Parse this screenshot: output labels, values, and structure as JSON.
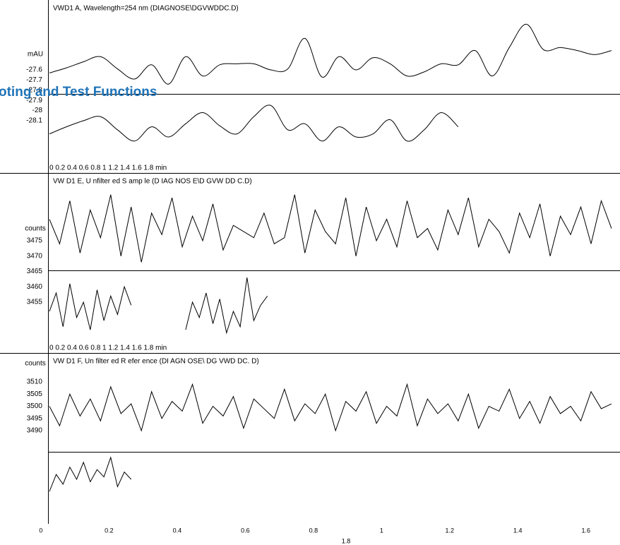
{
  "overlay_text": "oting and Test Functions",
  "stray_label": "1.8",
  "x_axis": {
    "xlim": [
      -0.12,
      1.7
    ],
    "xticks": [
      0,
      0.2,
      0.4,
      0.6,
      0.8,
      1,
      1.2,
      1.4,
      1.6
    ]
  },
  "chart_data": [
    {
      "type": "line",
      "smooth": true,
      "color": "#000000",
      "title": "VWD1 A, Wavelength=254 nm (DIAGNOSE\\DGVWDDC.D)",
      "y_label": "mAU",
      "inline_axis": "0 0.2 0.4 0.6 0.8 1 1.2 1.4 1.6 1.8 min",
      "xlim": [
        -0.12,
        1.7
      ],
      "ylim": [
        -28.614,
        -26.9125
      ],
      "yticks": [
        -27.6,
        -27.7,
        -27.8,
        -27.9,
        -28,
        -28.1
      ],
      "series": [
        {
          "x": [
            0.025,
            0.075,
            0.125,
            0.175,
            0.225,
            0.275,
            0.325,
            0.375,
            0.425,
            0.475,
            0.525,
            0.575,
            0.625,
            0.675,
            0.725,
            0.775,
            0.825,
            0.875,
            0.925,
            0.975,
            1.025,
            1.075,
            1.125,
            1.175,
            1.225,
            1.275,
            1.325,
            1.375,
            1.425,
            1.475,
            1.525,
            1.575,
            1.625,
            1.675
          ],
          "values": [
            -27.63,
            -27.58,
            -27.52,
            -27.47,
            -27.59,
            -27.69,
            -27.55,
            -27.74,
            -27.47,
            -27.66,
            -27.55,
            -27.54,
            -27.54,
            -27.6,
            -27.59,
            -27.29,
            -27.67,
            -27.47,
            -27.6,
            -27.48,
            -27.54,
            -27.66,
            -27.62,
            -27.54,
            -27.55,
            -27.41,
            -27.66,
            -27.38,
            -27.15,
            -27.4,
            -27.38,
            -27.41,
            -27.45,
            -27.41
          ]
        },
        {
          "x": [
            0.025,
            0.075,
            0.125,
            0.175,
            0.225,
            0.275,
            0.325,
            0.375,
            0.425,
            0.475,
            0.525,
            0.575,
            0.625,
            0.675,
            0.725,
            0.775,
            0.825,
            0.875,
            0.925,
            0.975,
            1.025,
            1.075,
            1.125,
            1.175,
            1.225
          ],
          "values": [
            -28.23,
            -28.16,
            -28.1,
            -28.06,
            -28.19,
            -28.3,
            -28.16,
            -28.26,
            -28.13,
            -28.02,
            -28.15,
            -28.23,
            -28.06,
            -27.95,
            -28.19,
            -28.13,
            -28.3,
            -28.16,
            -28.26,
            -28.23,
            -28.09,
            -28.3,
            -28.19,
            -28.02,
            -28.16
          ]
        }
      ]
    },
    {
      "type": "line",
      "smooth": false,
      "color": "#000000",
      "title": "VW D1  E, U nfilter ed S amp le (D IAG NOS E\\D GVW DD C.D)",
      "y_label": "counts",
      "inline_axis": "0 0.2 0.4 0.6 0.8 1 1.2 1.4 1.6 1.8 min",
      "xlim": [
        -0.12,
        1.7
      ],
      "ylim": [
        3438.45,
        3497.07
      ],
      "yticks": [
        3475,
        3470,
        3465,
        3460,
        3455
      ],
      "series": [
        {
          "x": [
            0.025,
            0.055,
            0.085,
            0.115,
            0.145,
            0.175,
            0.205,
            0.235,
            0.265,
            0.295,
            0.325,
            0.355,
            0.385,
            0.415,
            0.445,
            0.475,
            0.505,
            0.535,
            0.565,
            0.595,
            0.625,
            0.655,
            0.685,
            0.715,
            0.745,
            0.775,
            0.805,
            0.835,
            0.865,
            0.895,
            0.925,
            0.955,
            0.985,
            1.015,
            1.045,
            1.075,
            1.105,
            1.135,
            1.165,
            1.195,
            1.225,
            1.255,
            1.285,
            1.315,
            1.345,
            1.375,
            1.405,
            1.435,
            1.465,
            1.495,
            1.525,
            1.555,
            1.585,
            1.615,
            1.645,
            1.675
          ],
          "values": [
            3482,
            3474,
            3488,
            3471,
            3485,
            3476,
            3490,
            3470,
            3486,
            3468,
            3484,
            3477,
            3489,
            3473,
            3483,
            3475,
            3487,
            3472,
            3480,
            3478,
            3476,
            3484,
            3474,
            3476,
            3490,
            3471,
            3485,
            3478,
            3474,
            3489,
            3470,
            3486,
            3475,
            3482,
            3473,
            3488,
            3476,
            3479,
            3472,
            3485,
            3477,
            3489,
            3473,
            3482,
            3478,
            3471,
            3484,
            3476,
            3487,
            3470,
            3483,
            3477,
            3486,
            3474,
            3488,
            3479
          ]
        },
        {
          "x": [
            0.025,
            0.045,
            0.065,
            0.085,
            0.105,
            0.125,
            0.145,
            0.165,
            0.185,
            0.205,
            0.225,
            0.245,
            0.265
          ],
          "values": [
            3452,
            3458,
            3447,
            3461,
            3450,
            3455,
            3446,
            3459,
            3449,
            3457,
            3451,
            3460,
            3454
          ]
        },
        {
          "x": [
            0.425,
            0.445,
            0.465,
            0.485,
            0.505,
            0.525,
            0.545,
            0.565,
            0.585,
            0.605,
            0.625,
            0.645,
            0.665
          ],
          "values": [
            3446,
            3455,
            3450,
            3458,
            3448,
            3456,
            3445,
            3452,
            3447,
            3463,
            3449,
            3454,
            3457
          ]
        }
      ]
    },
    {
      "type": "line",
      "smooth": false,
      "color": "#000000",
      "title": "VW D1  F, Un filter ed R efer ence  (DI AGN OSE\\ DG VWD DC. D)",
      "y_label": "counts",
      "xlim": [
        -0.12,
        1.7
      ],
      "ylim": [
        3450.87,
        3521.88
      ],
      "yticks": [
        3510,
        3505,
        3500,
        3495,
        3490
      ],
      "series": [
        {
          "x": [
            0.025,
            0.055,
            0.085,
            0.115,
            0.145,
            0.175,
            0.205,
            0.235,
            0.265,
            0.295,
            0.325,
            0.355,
            0.385,
            0.415,
            0.445,
            0.475,
            0.505,
            0.535,
            0.565,
            0.595,
            0.625,
            0.655,
            0.685,
            0.715,
            0.745,
            0.775,
            0.805,
            0.835,
            0.865,
            0.895,
            0.925,
            0.955,
            0.985,
            1.015,
            1.045,
            1.075,
            1.105,
            1.135,
            1.165,
            1.195,
            1.225,
            1.255,
            1.285,
            1.315,
            1.345,
            1.375,
            1.405,
            1.435,
            1.465,
            1.495,
            1.525,
            1.555,
            1.585,
            1.615,
            1.645,
            1.675
          ],
          "values": [
            3500,
            3492,
            3505,
            3496,
            3503,
            3494,
            3508,
            3497,
            3501,
            3490,
            3506,
            3495,
            3502,
            3498,
            3509,
            3493,
            3500,
            3496,
            3504,
            3491,
            3503,
            3499,
            3495,
            3507,
            3494,
            3501,
            3497,
            3505,
            3490,
            3502,
            3498,
            3506,
            3493,
            3500,
            3496,
            3509,
            3492,
            3503,
            3497,
            3501,
            3494,
            3505,
            3491,
            3500,
            3498,
            3507,
            3495,
            3502,
            3493,
            3504,
            3497,
            3500,
            3494,
            3506,
            3499,
            3501
          ]
        },
        {
          "x": [
            0.025,
            0.045,
            0.065,
            0.085,
            0.105,
            0.125,
            0.145,
            0.165,
            0.185,
            0.205,
            0.225,
            0.245,
            0.265
          ],
          "values": [
            3465,
            3472,
            3468,
            3475,
            3470,
            3477,
            3469,
            3474,
            3471,
            3479,
            3467,
            3473,
            3470
          ]
        }
      ]
    }
  ]
}
